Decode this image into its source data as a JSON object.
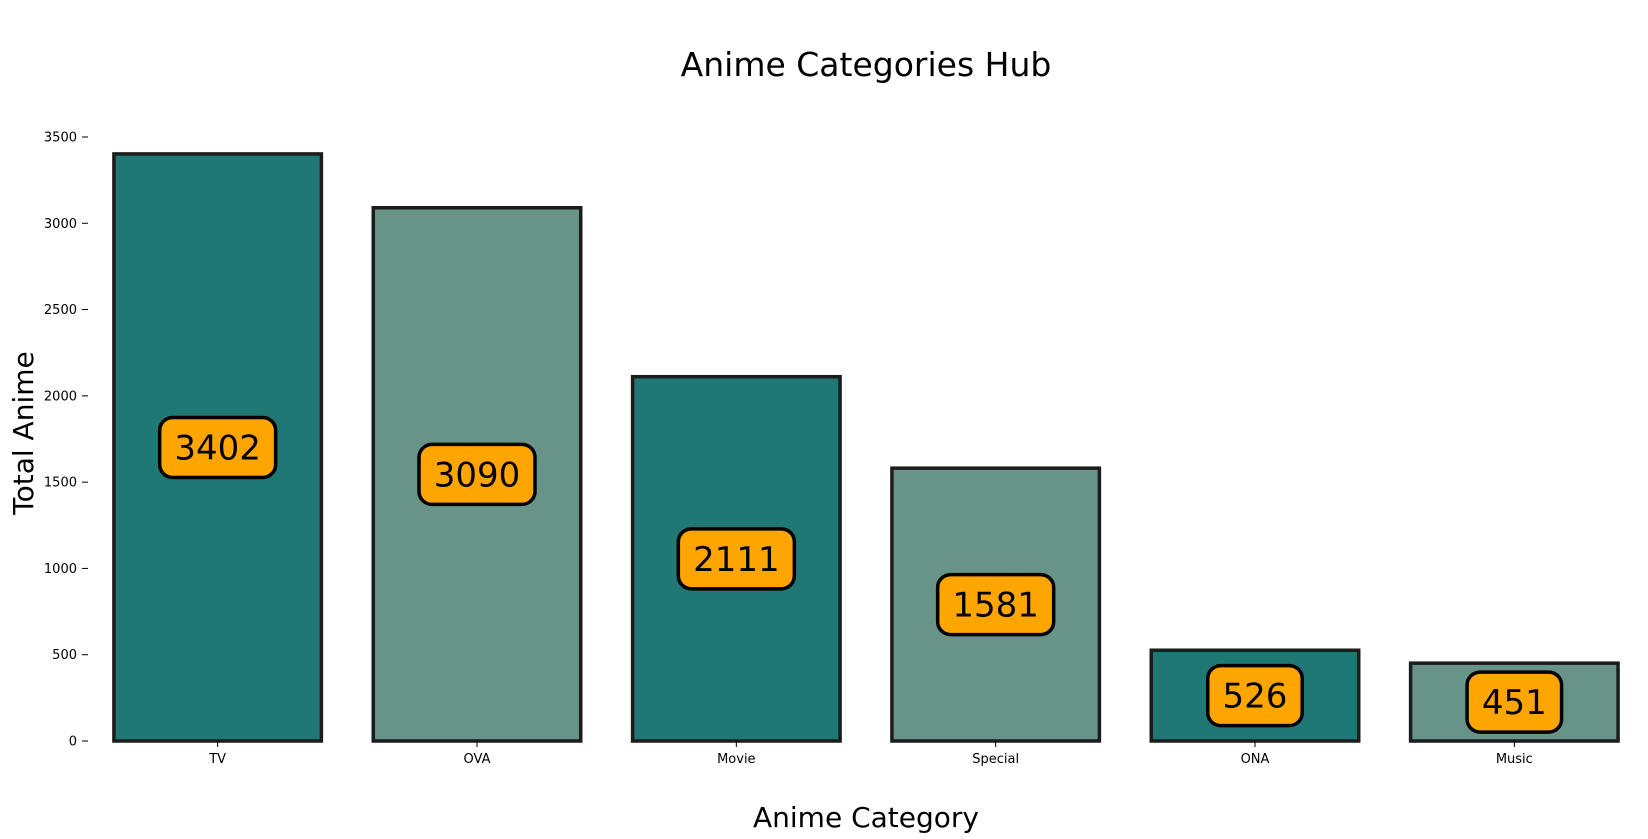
{
  "chart_data": {
    "type": "bar",
    "title": "Anime Categories Hub",
    "xlabel": "Anime Category",
    "ylabel": "Total Anime",
    "categories": [
      "TV",
      "OVA",
      "Movie",
      "Special",
      "ONA",
      "Music"
    ],
    "values": [
      3402,
      3090,
      2111,
      1581,
      526,
      451
    ],
    "ylim": [
      0,
      3500
    ],
    "yticks": [
      0,
      500,
      1000,
      1500,
      2000,
      2500,
      3000,
      3500
    ],
    "grid": false,
    "legend": "none",
    "colors": {
      "bar_dark": "#1f7873",
      "bar_light": "#679388",
      "bar_edge": "#1c1c1c",
      "label_box": "#ffa500",
      "label_edge": "#000000"
    }
  }
}
